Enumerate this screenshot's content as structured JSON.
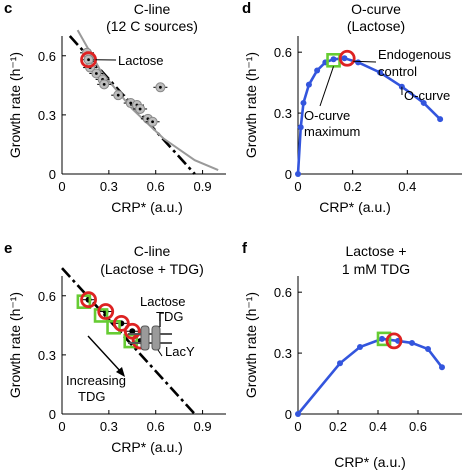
{
  "chart_data": [
    {
      "panel_letter": "c",
      "type": "scatter",
      "title": "C-line",
      "subtitle": "(12 C sources)",
      "xlabel": "CRP* (a.u.)",
      "ylabel": "Growth rate (h⁻¹)",
      "xlim": [
        0,
        1.05
      ],
      "ylim": [
        0,
        0.68
      ],
      "xticks": [
        "0",
        "0.3",
        "0.6",
        "0.9"
      ],
      "yticks": [
        "0",
        "0.3",
        "0.6"
      ],
      "xtick_values": [
        0,
        0.3,
        0.6,
        0.9
      ],
      "ytick_values": [
        0,
        0.3,
        0.6
      ],
      "series": [
        {
          "name": "",
          "points": [
            {
              "x": 0.16,
              "y": 0.615
            },
            {
              "x": 0.17,
              "y": 0.58
            },
            {
              "x": 0.18,
              "y": 0.54
            },
            {
              "x": 0.22,
              "y": 0.51
            },
            {
              "x": 0.26,
              "y": 0.48
            },
            {
              "x": 0.27,
              "y": 0.455
            },
            {
              "x": 0.36,
              "y": 0.4
            },
            {
              "x": 0.44,
              "y": 0.36
            },
            {
              "x": 0.48,
              "y": 0.35
            },
            {
              "x": 0.5,
              "y": 0.33
            },
            {
              "x": 0.55,
              "y": 0.28
            },
            {
              "x": 0.58,
              "y": 0.265
            },
            {
              "x": 0.63,
              "y": 0.44
            }
          ]
        }
      ],
      "lines": [
        {
          "style": "dash-dot",
          "color": "#000000",
          "points": [
            [
              0.05,
              0.7
            ],
            [
              0.85,
              0
            ]
          ]
        },
        {
          "style": "solid",
          "color": "#9a9a9a",
          "points": [
            [
              0.1,
              0.73
            ],
            [
              0.25,
              0.52
            ],
            [
              0.45,
              0.33
            ],
            [
              0.65,
              0.18
            ],
            [
              0.85,
              0.07
            ],
            [
              1.0,
              0.02
            ]
          ]
        }
      ],
      "highlight": {
        "x": 0.17,
        "y": 0.58,
        "label": "Lactose"
      }
    },
    {
      "panel_letter": "d",
      "type": "line",
      "title": "O-curve",
      "subtitle": "(Lactose)",
      "xlabel": "CRP* (a.u.)",
      "ylabel": "Growth rate (h⁻¹)",
      "xlim": [
        0,
        0.6
      ],
      "ylim": [
        0,
        0.66
      ],
      "xticks": [
        "0",
        "0.2",
        "0.4"
      ],
      "yticks": [
        "0",
        "0.3",
        "0.6"
      ],
      "xtick_values": [
        0,
        0.2,
        0.4
      ],
      "ytick_values": [
        0,
        0.3,
        0.6
      ],
      "series": [
        {
          "name": "O-curve",
          "color": "#3355dd",
          "points": [
            {
              "x": 0.0,
              "y": 0.0
            },
            {
              "x": 0.01,
              "y": 0.23
            },
            {
              "x": 0.02,
              "y": 0.35
            },
            {
              "x": 0.04,
              "y": 0.44
            },
            {
              "x": 0.07,
              "y": 0.51
            },
            {
              "x": 0.1,
              "y": 0.55
            },
            {
              "x": 0.13,
              "y": 0.565
            },
            {
              "x": 0.17,
              "y": 0.57
            },
            {
              "x": 0.22,
              "y": 0.55
            },
            {
              "x": 0.3,
              "y": 0.5
            },
            {
              "x": 0.38,
              "y": 0.43
            },
            {
              "x": 0.46,
              "y": 0.35
            },
            {
              "x": 0.52,
              "y": 0.27
            }
          ]
        }
      ],
      "square_marker": {
        "x": 0.13,
        "y": 0.56
      },
      "circle_marker": {
        "x": 0.18,
        "y": 0.57
      },
      "annotations": [
        "Endogenous",
        "control",
        "O-curve maximum",
        "O-curve"
      ]
    },
    {
      "panel_letter": "e",
      "type": "scatter",
      "title": "C-line",
      "subtitle": "(Lactose + TDG)",
      "xlabel": "CRP* (a.u.)",
      "ylabel": "Growth rate (h⁻¹)",
      "xlim": [
        0,
        1.05
      ],
      "ylim": [
        0,
        0.68
      ],
      "xticks": [
        "0",
        "0.3",
        "0.6",
        "0.9"
      ],
      "yticks": [
        "0",
        "0.3",
        "0.6"
      ],
      "xtick_values": [
        0,
        0.3,
        0.6,
        0.9
      ],
      "ytick_values": [
        0,
        0.3,
        0.6
      ],
      "series": [
        {
          "name": "",
          "points": [
            {
              "x": 0.17,
              "y": 0.58
            },
            {
              "x": 0.28,
              "y": 0.52
            },
            {
              "x": 0.38,
              "y": 0.46
            },
            {
              "x": 0.45,
              "y": 0.42
            },
            {
              "x": 0.5,
              "y": 0.37
            }
          ]
        }
      ],
      "squares": [
        {
          "x": 0.14,
          "y": 0.57
        },
        {
          "x": 0.25,
          "y": 0.5
        },
        {
          "x": 0.33,
          "y": 0.44
        },
        {
          "x": 0.44,
          "y": 0.37
        }
      ],
      "lines": [
        {
          "style": "dash-dot",
          "color": "#000000",
          "points": [
            [
              0.0,
              0.74
            ],
            [
              0.85,
              0
            ]
          ]
        }
      ],
      "annotations": [
        "Lactose",
        "TDG",
        "LacY",
        "Increasing",
        "TDG"
      ]
    },
    {
      "panel_letter": "f",
      "type": "line",
      "title": "Lactose +",
      "subtitle": "1 mM TDG",
      "xlabel": "CRP* (a.u.)",
      "ylabel": "Growth rate (h⁻¹)",
      "xlim": [
        0,
        0.82
      ],
      "ylim": [
        0,
        0.66
      ],
      "xticks": [
        "0",
        "0.2",
        "0.4",
        "0.6"
      ],
      "yticks": [
        "0",
        "0.3",
        "0.6"
      ],
      "xtick_values": [
        0,
        0.2,
        0.4,
        0.6
      ],
      "ytick_values": [
        0,
        0.3,
        0.6
      ],
      "series": [
        {
          "name": "",
          "color": "#3355dd",
          "points": [
            {
              "x": 0.0,
              "y": 0.0
            },
            {
              "x": 0.21,
              "y": 0.25
            },
            {
              "x": 0.31,
              "y": 0.33
            },
            {
              "x": 0.42,
              "y": 0.37
            },
            {
              "x": 0.5,
              "y": 0.36
            },
            {
              "x": 0.57,
              "y": 0.35
            },
            {
              "x": 0.65,
              "y": 0.32
            },
            {
              "x": 0.72,
              "y": 0.23
            }
          ]
        }
      ],
      "square_marker": {
        "x": 0.43,
        "y": 0.37
      },
      "circle_marker": {
        "x": 0.48,
        "y": 0.36
      }
    }
  ]
}
